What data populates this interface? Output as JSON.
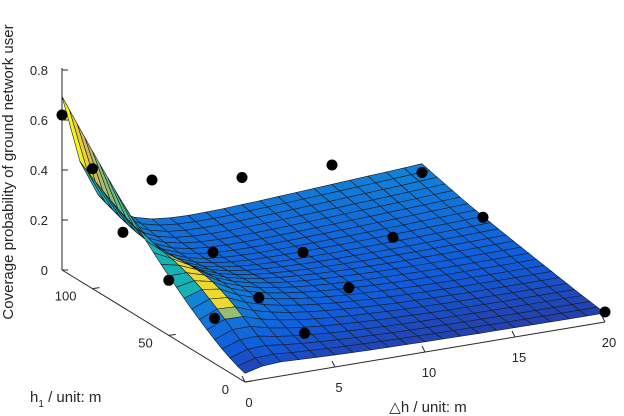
{
  "chart_data": {
    "type": "surface",
    "zlabel": "Coverage probability of ground network user",
    "xlabel": "△h / unit: m",
    "ylabel_main": "h",
    "ylabel_sub": "1",
    "ylabel_rest": " / unit: m",
    "x_ticks": [
      "0",
      "5",
      "10",
      "15",
      "20"
    ],
    "y_ticks": [
      "0",
      "50",
      "100"
    ],
    "z_ticks": [
      "0",
      "0.2",
      "0.4",
      "0.6",
      "0.8"
    ],
    "xlim": [
      0,
      20
    ],
    "ylim": [
      0,
      120
    ],
    "zlim": [
      0,
      0.8
    ],
    "colormap": "parula",
    "grid": false,
    "points": [
      {
        "x": 0,
        "y": 120,
        "z": 0.62
      },
      {
        "x": 0,
        "y": 100,
        "z": 0.48
      },
      {
        "x": 0,
        "y": 80,
        "z": 0.3
      },
      {
        "x": 0,
        "y": 50,
        "z": 0.22
      },
      {
        "x": 0,
        "y": 20,
        "z": 0.18
      },
      {
        "x": 5,
        "y": 120,
        "z": 0.3
      },
      {
        "x": 5,
        "y": 80,
        "z": 0.16
      },
      {
        "x": 5,
        "y": 50,
        "z": 0.09
      },
      {
        "x": 5,
        "y": 20,
        "z": 0.06
      },
      {
        "x": 10,
        "y": 120,
        "z": 0.25
      },
      {
        "x": 10,
        "y": 80,
        "z": 0.1
      },
      {
        "x": 10,
        "y": 50,
        "z": 0.07
      },
      {
        "x": 15,
        "y": 120,
        "z": 0.24
      },
      {
        "x": 15,
        "y": 80,
        "z": 0.1
      },
      {
        "x": 20,
        "y": 120,
        "z": 0.15
      },
      {
        "x": 20,
        "y": 80,
        "z": 0.12
      },
      {
        "x": 20,
        "y": 0,
        "z": 0.04
      }
    ]
  }
}
